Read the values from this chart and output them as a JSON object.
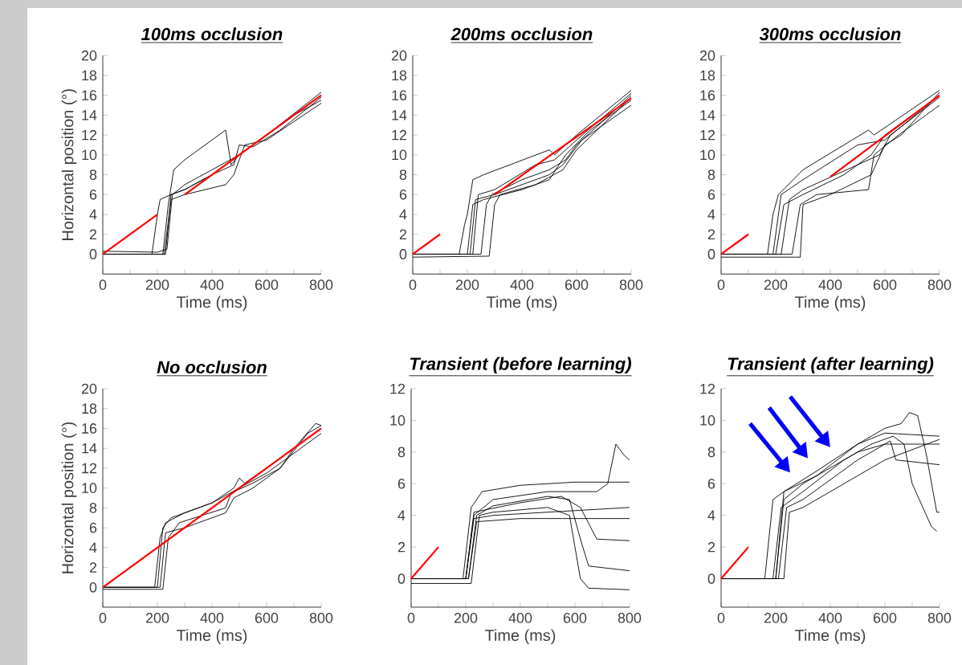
{
  "chart_data": [
    {
      "type": "line",
      "title": "100ms occlusion",
      "xlabel": "Time (ms)",
      "ylabel": "Horizontal position (°)",
      "xlim": [
        0,
        800
      ],
      "ylim": [
        -2,
        20
      ],
      "xticks": [
        0,
        {
          "value": 100,
          "label": null
        },
        200,
        {
          "value": 300,
          "label": null
        },
        400,
        {
          "value": 500,
          "label": null
        },
        600,
        {
          "value": 700,
          "label": null
        },
        800
      ],
      "yticks": [
        0,
        2,
        4,
        6,
        8,
        10,
        12,
        14,
        16,
        18,
        20
      ],
      "series": [
        {
          "color": "#000000",
          "x": [
            0,
            180,
            200,
            210,
            250,
            300,
            400,
            500,
            600,
            700,
            800
          ],
          "values": [
            0,
            0,
            4,
            5.5,
            6,
            6.5,
            8,
            10,
            12,
            14,
            15.5
          ]
        },
        {
          "color": "#000000",
          "x": [
            0,
            220,
            240,
            260,
            300,
            450,
            470,
            500,
            600,
            700,
            800
          ],
          "values": [
            0,
            0,
            5,
            8.5,
            9.5,
            12.5,
            9,
            10,
            12,
            14,
            16
          ]
        },
        {
          "color": "#000000",
          "x": [
            0,
            230,
            250,
            300,
            400,
            480,
            500,
            550,
            650,
            800
          ],
          "values": [
            0,
            0,
            6,
            6.5,
            8,
            9,
            11,
            10.8,
            12.5,
            15.8
          ]
        },
        {
          "color": "#000000",
          "x": [
            0,
            225,
            250,
            300,
            450,
            480,
            520,
            600,
            800
          ],
          "values": [
            0,
            0,
            5.5,
            6,
            7,
            8,
            11,
            11.5,
            15.2
          ]
        },
        {
          "color": "#000000",
          "x": [
            0,
            200,
            235,
            255,
            300,
            400,
            500,
            600,
            800
          ],
          "values": [
            0.3,
            0.2,
            0.5,
            6,
            7,
            8.5,
            10,
            12,
            16.3
          ]
        },
        {
          "color": "#ff0000",
          "x": [
            0,
            200,
            250,
            300,
            800
          ],
          "values": [
            0,
            4,
            null,
            6,
            16
          ]
        }
      ]
    },
    {
      "type": "line",
      "title": "200ms occlusion",
      "xlabel": "Time (ms)",
      "xlim": [
        0,
        800
      ],
      "ylim": [
        -2,
        20
      ],
      "xticks": [
        0,
        {
          "value": 100,
          "label": null
        },
        200,
        {
          "value": 300,
          "label": null
        },
        400,
        {
          "value": 500,
          "label": null
        },
        600,
        {
          "value": 700,
          "label": null
        },
        800
      ],
      "yticks": [
        0,
        2,
        4,
        6,
        8,
        10,
        12,
        14,
        16,
        18,
        20
      ],
      "series": [
        {
          "color": "#000000",
          "x": [
            0,
            170,
            190,
            200,
            220,
            260,
            500,
            520,
            600,
            800
          ],
          "values": [
            0,
            0,
            3,
            4,
            7.5,
            8,
            10.5,
            10,
            12,
            16.5
          ]
        },
        {
          "color": "#000000",
          "x": [
            0,
            200,
            220,
            260,
            400,
            500,
            560,
            650,
            800
          ],
          "values": [
            0,
            0,
            5,
            5.5,
            6.5,
            7.5,
            10,
            12.5,
            15.5
          ]
        },
        {
          "color": "#000000",
          "x": [
            0,
            250,
            270,
            290,
            400,
            500,
            560,
            600,
            800
          ],
          "values": [
            0,
            0,
            5,
            6,
            7.5,
            8.5,
            9.5,
            11,
            16
          ]
        },
        {
          "color": "#000000",
          "x": [
            0,
            210,
            230,
            300,
            400,
            500,
            550,
            620,
            800
          ],
          "values": [
            0,
            0,
            5.5,
            6,
            7,
            8,
            9,
            11.5,
            15
          ]
        },
        {
          "color": "#000000",
          "x": [
            0,
            220,
            240,
            300,
            450,
            520,
            600,
            800
          ],
          "values": [
            0,
            0,
            6,
            6.5,
            9,
            9.5,
            11.5,
            16.2
          ]
        },
        {
          "color": "#000000",
          "x": [
            0,
            280,
            300,
            320,
            450,
            550,
            600,
            800
          ],
          "values": [
            -0.3,
            -0.2,
            5,
            6,
            7,
            8.5,
            10.5,
            15.8
          ]
        },
        {
          "color": "#ff0000",
          "x": [
            0,
            100,
            200,
            300,
            800
          ],
          "values": [
            0,
            2,
            null,
            6,
            15.7
          ]
        }
      ]
    },
    {
      "type": "line",
      "title": "300ms occlusion",
      "xlabel": "Time (ms)",
      "xlim": [
        0,
        800
      ],
      "ylim": [
        -2,
        20
      ],
      "xticks": [
        0,
        {
          "value": 100,
          "label": null
        },
        200,
        {
          "value": 300,
          "label": null
        },
        400,
        {
          "value": 500,
          "label": null
        },
        600,
        {
          "value": 700,
          "label": null
        },
        800
      ],
      "yticks": [
        0,
        2,
        4,
        6,
        8,
        10,
        12,
        14,
        16,
        18,
        20
      ],
      "series": [
        {
          "color": "#000000",
          "x": [
            0,
            170,
            190,
            210,
            300,
            540,
            560,
            640,
            800
          ],
          "values": [
            0,
            0,
            4,
            6,
            8.5,
            12.5,
            12,
            13.5,
            16.5
          ]
        },
        {
          "color": "#000000",
          "x": [
            0,
            200,
            230,
            300,
            450,
            550,
            600,
            800
          ],
          "values": [
            0,
            0,
            5,
            6,
            8,
            10,
            12,
            16
          ]
        },
        {
          "color": "#000000",
          "x": [
            0,
            260,
            290,
            350,
            540,
            560,
            650,
            800
          ],
          "values": [
            0,
            0,
            5,
            6,
            6.5,
            10,
            12,
            15
          ]
        },
        {
          "color": "#000000",
          "x": [
            0,
            220,
            250,
            300,
            500,
            580,
            620,
            800
          ],
          "values": [
            0,
            0,
            5.5,
            6.5,
            9,
            10,
            12,
            15.8
          ]
        },
        {
          "color": "#000000",
          "x": [
            0,
            290,
            300,
            400,
            550,
            600,
            660,
            800
          ],
          "values": [
            -0.3,
            -0.3,
            5,
            6,
            8,
            11,
            12,
            16.3
          ]
        },
        {
          "color": "#000000",
          "x": [
            0,
            190,
            220,
            300,
            500,
            600,
            800
          ],
          "values": [
            0,
            0,
            6,
            7.5,
            11,
            11.5,
            16
          ]
        },
        {
          "color": "#ff0000",
          "x": [
            0,
            100,
            250,
            400,
            800
          ],
          "values": [
            0,
            2,
            null,
            7.8,
            16
          ]
        }
      ]
    },
    {
      "type": "line",
      "title": "No occlusion",
      "xlabel": "Time (ms)",
      "ylabel": "Horizontal position (°)",
      "xlim": [
        0,
        800
      ],
      "ylim": [
        -2,
        20
      ],
      "xticks": [
        0,
        {
          "value": 100,
          "label": null
        },
        200,
        {
          "value": 300,
          "label": null
        },
        400,
        {
          "value": 500,
          "label": null
        },
        600,
        {
          "value": 700,
          "label": null
        },
        800
      ],
      "yticks": [
        0,
        2,
        4,
        6,
        8,
        10,
        12,
        14,
        16,
        18,
        20
      ],
      "series": [
        {
          "color": "#000000",
          "x": [
            0,
            190,
            210,
            230,
            300,
            400,
            480,
            500,
            520,
            600,
            700,
            780,
            800
          ],
          "values": [
            0,
            0,
            5,
            6.5,
            7.5,
            8.5,
            10,
            11,
            10.5,
            12,
            14,
            16.5,
            16.3
          ]
        },
        {
          "color": "#000000",
          "x": [
            0,
            210,
            230,
            300,
            450,
            480,
            550,
            650,
            700,
            800
          ],
          "values": [
            0,
            0,
            5.5,
            6,
            7.5,
            9,
            10,
            12,
            14,
            16
          ]
        },
        {
          "color": "#000000",
          "x": [
            0,
            200,
            220,
            250,
            400,
            500,
            600,
            700,
            800
          ],
          "values": [
            0,
            0,
            6,
            7,
            8.5,
            10,
            11.5,
            13.5,
            15.5
          ]
        },
        {
          "color": "#000000",
          "x": [
            0,
            220,
            240,
            280,
            450,
            470,
            550,
            650,
            750,
            800
          ],
          "values": [
            -0.2,
            -0.2,
            5,
            6.5,
            8,
            9.5,
            10.5,
            12,
            15.5,
            16.3
          ]
        },
        {
          "color": "#ff0000",
          "x": [
            0,
            800
          ],
          "values": [
            0,
            16
          ]
        }
      ]
    },
    {
      "type": "line",
      "title": "Transient (before learning)",
      "xlabel": "Time (ms)",
      "xlim": [
        0,
        800
      ],
      "ylim": [
        -1.8,
        12
      ],
      "xticks": [
        0,
        {
          "value": 100,
          "label": null
        },
        200,
        {
          "value": 300,
          "label": null
        },
        400,
        {
          "value": 500,
          "label": null
        },
        600,
        {
          "value": 700,
          "label": null
        },
        800
      ],
      "yticks": [
        0,
        2,
        4,
        6,
        8,
        10,
        12
      ],
      "series": [
        {
          "color": "#000000",
          "x": [
            0,
            190,
            220,
            260,
            400,
            600,
            800
          ],
          "values": [
            0,
            0,
            4.5,
            5.5,
            5.9,
            6.1,
            6.1
          ]
        },
        {
          "color": "#000000",
          "x": [
            0,
            200,
            230,
            300,
            500,
            680,
            720,
            750,
            780,
            800
          ],
          "values": [
            0,
            0,
            4,
            5,
            5.5,
            5.5,
            6,
            8.5,
            7.8,
            7.5
          ]
        },
        {
          "color": "#000000",
          "x": [
            0,
            210,
            240,
            300,
            500,
            580,
            620,
            650,
            800
          ],
          "values": [
            0,
            0,
            4,
            4.6,
            5.2,
            5,
            2.5,
            0.8,
            0.5
          ]
        },
        {
          "color": "#000000",
          "x": [
            0,
            220,
            250,
            300,
            500,
            580,
            620,
            650,
            800
          ],
          "values": [
            -0.3,
            -0.3,
            4,
            4.2,
            4.5,
            4,
            0,
            -0.6,
            -0.7
          ]
        },
        {
          "color": "#000000",
          "x": [
            0,
            200,
            230,
            300,
            500,
            800
          ],
          "values": [
            0,
            0,
            3.8,
            4,
            4.2,
            4.5
          ]
        },
        {
          "color": "#000000",
          "x": [
            0,
            210,
            240,
            400,
            800
          ],
          "values": [
            0,
            0,
            3.6,
            3.8,
            3.8
          ]
        },
        {
          "color": "#000000",
          "x": [
            0,
            200,
            230,
            400,
            550,
            620,
            680,
            800
          ],
          "values": [
            0,
            0,
            4.2,
            4.8,
            5.2,
            4.5,
            2.5,
            2.4
          ]
        },
        {
          "color": "#ff0000",
          "x": [
            0,
            100
          ],
          "values": [
            0,
            2
          ]
        }
      ]
    },
    {
      "type": "line",
      "title": "Transient (after learning)",
      "xlabel": "Time (ms)",
      "xlim": [
        0,
        800
      ],
      "ylim": [
        -1.8,
        12
      ],
      "xticks": [
        0,
        {
          "value": 100,
          "label": null
        },
        200,
        {
          "value": 300,
          "label": null
        },
        400,
        {
          "value": 500,
          "label": null
        },
        600,
        {
          "value": 700,
          "label": null
        },
        800
      ],
      "yticks": [
        0,
        2,
        4,
        6,
        8,
        10,
        12
      ],
      "series": [
        {
          "color": "#000000",
          "x": [
            0,
            160,
            190,
            230,
            350,
            500,
            600,
            660,
            690,
            720,
            750,
            790,
            800
          ],
          "values": [
            0,
            0,
            5,
            5.5,
            6.8,
            8.5,
            9.5,
            9.8,
            10.5,
            10.3,
            8,
            4.2,
            4.2
          ]
        },
        {
          "color": "#000000",
          "x": [
            0,
            190,
            220,
            300,
            450,
            550,
            630,
            670,
            700,
            770,
            790
          ],
          "values": [
            0,
            0,
            4.5,
            5.5,
            7.5,
            8.5,
            9,
            8.5,
            6,
            3.3,
            3
          ]
        },
        {
          "color": "#000000",
          "x": [
            0,
            200,
            230,
            300,
            500,
            600,
            800
          ],
          "values": [
            0,
            0,
            5,
            6,
            8,
            8.5,
            8.5
          ]
        },
        {
          "color": "#000000",
          "x": [
            0,
            210,
            240,
            300,
            500,
            620,
            640,
            800
          ],
          "values": [
            0,
            0,
            4.5,
            5,
            7.5,
            8.7,
            7.5,
            7.2
          ]
        },
        {
          "color": "#000000",
          "x": [
            0,
            230,
            250,
            300,
            500,
            600,
            800
          ],
          "values": [
            0,
            0,
            4.2,
            4.5,
            6.5,
            7.5,
            8.8
          ]
        },
        {
          "color": "#000000",
          "x": [
            0,
            200,
            230,
            350,
            500,
            600,
            800
          ],
          "values": [
            0,
            0,
            5.5,
            6.5,
            8.5,
            9.2,
            9
          ]
        },
        {
          "color": "#ff0000",
          "x": [
            0,
            100
          ],
          "values": [
            0,
            2
          ]
        }
      ]
    }
  ]
}
